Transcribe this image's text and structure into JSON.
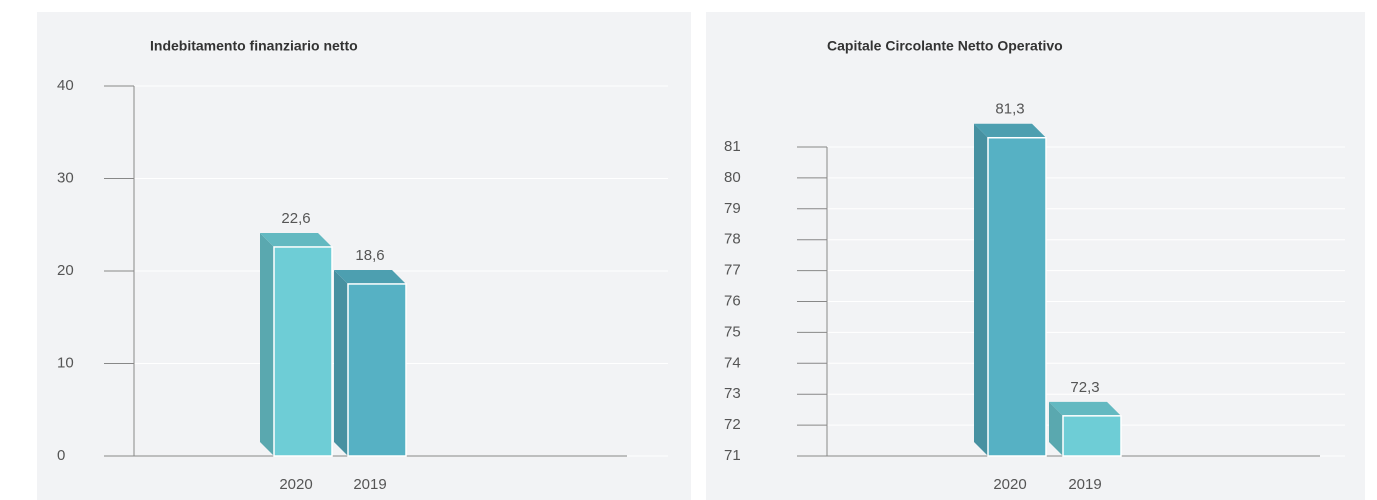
{
  "chart_data": [
    {
      "type": "bar3d",
      "title": "Indebitamento finanziario netto",
      "categories": [
        "2020",
        "2019"
      ],
      "values": [
        22.6,
        18.6
      ],
      "value_labels": [
        "22,6",
        "18,6"
      ],
      "colors": [
        "#6ecdd6",
        "#56b1c4"
      ],
      "ylim": [
        0,
        40
      ],
      "yticks": [
        0,
        10,
        20,
        30,
        40
      ],
      "grid": true
    },
    {
      "type": "bar3d",
      "title": "Capitale Circolante Netto Operativo",
      "categories": [
        "2020",
        "2019"
      ],
      "values": [
        81.3,
        72.3
      ],
      "value_labels": [
        "81,3",
        "72,3"
      ],
      "colors": [
        "#56b1c4",
        "#6ecdd6"
      ],
      "ylim": [
        71,
        81
      ],
      "yticks": [
        71,
        72,
        73,
        74,
        75,
        76,
        77,
        78,
        79,
        80,
        81
      ],
      "grid": true
    }
  ]
}
